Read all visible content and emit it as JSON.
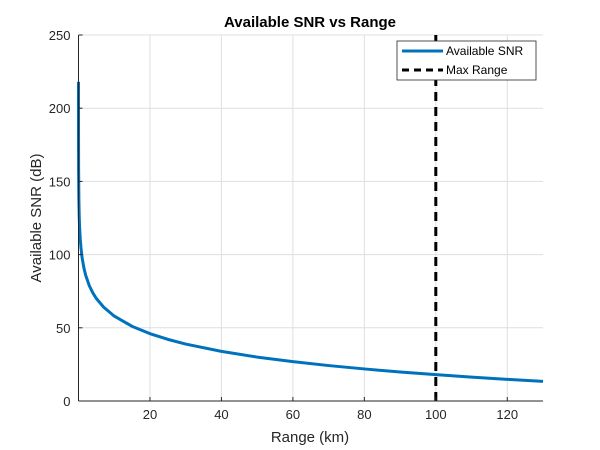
{
  "chart_data": {
    "type": "line",
    "title": "Available SNR vs Range",
    "xlabel": "Range (km)",
    "ylabel": "Available SNR (dB)",
    "xlim": [
      0,
      130
    ],
    "ylim": [
      0,
      250
    ],
    "xticks": [
      20,
      40,
      60,
      80,
      100,
      120
    ],
    "yticks": [
      0,
      50,
      100,
      150,
      200,
      250
    ],
    "grid": true,
    "legend_position": "top-right",
    "series": [
      {
        "name": "Available SNR",
        "color": "#0072BD",
        "x": [
          0.001,
          0.003,
          0.01,
          0.03,
          0.1,
          0.2,
          0.3,
          0.5,
          0.7,
          1,
          1.5,
          2,
          3,
          4,
          5,
          7,
          10,
          15,
          20,
          25,
          30,
          40,
          50,
          60,
          70,
          80,
          90,
          100,
          110,
          120,
          130
        ],
        "y": [
          218,
          198.9,
          178,
          158.9,
          138,
          126,
          118.9,
          110.4,
          104.5,
          98,
          91,
          86,
          78.9,
          73.9,
          70,
          64.2,
          58,
          51,
          46,
          42.1,
          38.9,
          33.9,
          30,
          26.9,
          24.2,
          21.9,
          19.8,
          18,
          16.3,
          14.8,
          13.4
        ]
      },
      {
        "name": "Max Range",
        "color": "#000000",
        "style": "dashed",
        "x": [
          100,
          100
        ],
        "y": [
          0,
          250
        ]
      }
    ]
  }
}
